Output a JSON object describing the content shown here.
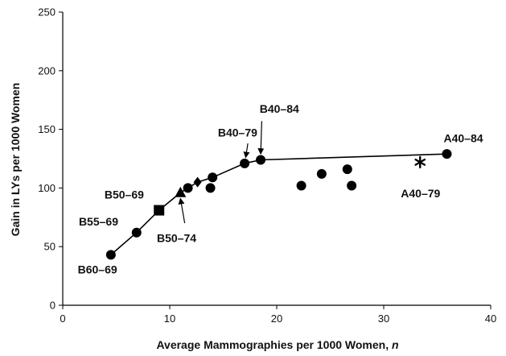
{
  "chart_data": {
    "type": "scatter",
    "xlabel": "Average Mammographies per 1000 Women, n",
    "xlabel_main": "Average Mammographies per 1000 Women, ",
    "xlabel_var": "n",
    "ylabel": "Gain in LYs per 1000 Women",
    "xlim": [
      0,
      40
    ],
    "ylim": [
      0,
      250
    ],
    "xticks": [
      0,
      10,
      20,
      30,
      40
    ],
    "yticks": [
      0,
      50,
      100,
      150,
      200,
      250
    ],
    "grid": false,
    "frontier_line": [
      {
        "x": 4.5,
        "y": 43
      },
      {
        "x": 6.9,
        "y": 62
      },
      {
        "x": 9.0,
        "y": 81
      },
      {
        "x": 11.0,
        "y": 96
      },
      {
        "x": 11.7,
        "y": 100
      },
      {
        "x": 12.6,
        "y": 105
      },
      {
        "x": 14.0,
        "y": 109
      },
      {
        "x": 17.0,
        "y": 121
      },
      {
        "x": 18.5,
        "y": 124
      },
      {
        "x": 35.9,
        "y": 129
      }
    ],
    "points": [
      {
        "x": 4.5,
        "y": 43,
        "marker": "circle"
      },
      {
        "x": 6.9,
        "y": 62,
        "marker": "circle"
      },
      {
        "x": 9.0,
        "y": 81,
        "marker": "square"
      },
      {
        "x": 11.0,
        "y": 96,
        "marker": "triangle"
      },
      {
        "x": 11.7,
        "y": 100,
        "marker": "circle"
      },
      {
        "x": 12.6,
        "y": 105,
        "marker": "diamond"
      },
      {
        "x": 14.0,
        "y": 109,
        "marker": "circle"
      },
      {
        "x": 13.8,
        "y": 100,
        "marker": "circle"
      },
      {
        "x": 17.0,
        "y": 121,
        "marker": "circle"
      },
      {
        "x": 18.5,
        "y": 124,
        "marker": "circle"
      },
      {
        "x": 22.3,
        "y": 102,
        "marker": "circle"
      },
      {
        "x": 24.2,
        "y": 112,
        "marker": "circle"
      },
      {
        "x": 26.6,
        "y": 116,
        "marker": "circle"
      },
      {
        "x": 27.0,
        "y": 102,
        "marker": "circle"
      },
      {
        "x": 33.4,
        "y": 122,
        "marker": "asterisk"
      },
      {
        "x": 35.9,
        "y": 129,
        "marker": "circle"
      }
    ],
    "annotations": [
      {
        "text": "B60–69",
        "x": 1.4,
        "y": 27
      },
      {
        "text": "B55–69",
        "x": 1.5,
        "y": 68
      },
      {
        "text": "B50–69",
        "x": 3.9,
        "y": 91
      },
      {
        "text": "B50–74",
        "x": 8.8,
        "y": 54
      },
      {
        "text": "B40–79",
        "x": 14.5,
        "y": 144
      },
      {
        "text": "B40–84",
        "x": 18.4,
        "y": 164
      },
      {
        "text": "A40–84",
        "x": 35.6,
        "y": 139
      },
      {
        "text": "A40–79",
        "x": 31.6,
        "y": 92
      }
    ],
    "arrows": [
      {
        "from": [
          11.4,
          70
        ],
        "to": [
          11.0,
          91
        ]
      },
      {
        "from": [
          17.3,
          138
        ],
        "to": [
          17.1,
          126
        ]
      },
      {
        "from": [
          18.6,
          157
        ],
        "to": [
          18.5,
          129
        ]
      }
    ]
  }
}
